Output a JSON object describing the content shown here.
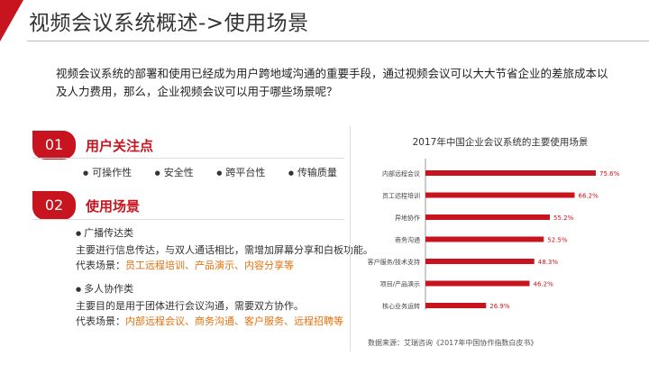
{
  "header": {
    "title": "视频会议系统概述->使用场景"
  },
  "intro": "视频会议系统的部署和使用已经成为用户跨地域沟通的重要手段，通过视频会议可以大大节省企业的差旅成本以及人力费用，那么，企业视频会议可以用于哪些场景呢？",
  "section1": {
    "number": "01",
    "title": "用户关注点",
    "items": [
      "可操作性",
      "安全性",
      "跨平台性",
      "传输质量"
    ]
  },
  "section2": {
    "number": "02",
    "title": "使用场景",
    "broadcast": {
      "head": "广播传达类",
      "desc": "主要进行信息传达，与双人通话相比，需增加屏幕分享和白板功能。",
      "label": "代表场景：",
      "scenes": "员工远程培训、产品演示、内容分享等"
    },
    "collab": {
      "head": "多人协作类",
      "desc": "主要目的是用于团体进行会议沟通，需要双方协作。",
      "label": "代表场景：",
      "scenes": "内部远程会议、商务沟通、客户服务、远程招聘等"
    }
  },
  "colors": {
    "accent": "#c8141e",
    "highlight": "#e8700c"
  },
  "chart_data": {
    "type": "bar",
    "orientation": "horizontal",
    "title": "2017年中国企业会议系统的主要使用场景",
    "categories": [
      "内部远程会议",
      "员工远程培训",
      "异地协作",
      "商务沟通",
      "客户服务/技术支持",
      "项目/产品演示",
      "核心业务运转"
    ],
    "values": [
      75.6,
      66.2,
      55.2,
      52.5,
      48.3,
      46.2,
      26.9
    ],
    "value_labels": [
      "75.6%",
      "66.2%",
      "55.2%",
      "52.5%",
      "48.3%",
      "46.2%",
      "26.9%"
    ],
    "xlim": [
      0,
      80
    ],
    "bar_color": "#c8141e",
    "grid": false,
    "legend": "none",
    "source": "数据来源：艾瑞咨询《2017年中国协作指数白皮书》"
  }
}
